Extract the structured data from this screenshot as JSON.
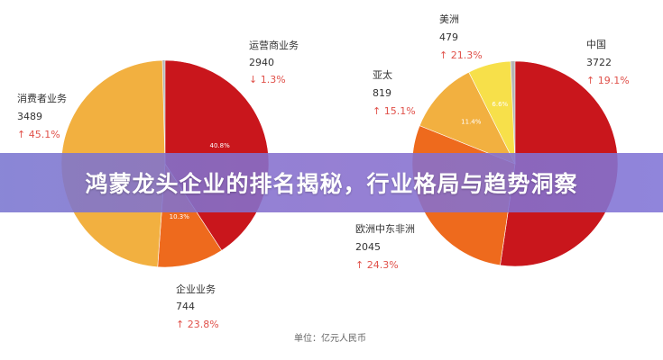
{
  "banner": {
    "title": "鸿蒙龙头企业的排名揭秘，行业格局与趋势洞察"
  },
  "unit_label": "单位：亿元人民币",
  "chart_data": [
    {
      "type": "pie",
      "categories": [
        "运营商业务",
        "企业业务",
        "消费者业务"
      ],
      "values": [
        2940,
        744,
        3489
      ],
      "percent_labels": [
        "40.8%",
        "10.3%",
        ""
      ],
      "changes": [
        "↓ 1.3%",
        "↑ 23.8%",
        "↑ 45.1%"
      ],
      "colors": [
        "#c9161c",
        "#ee6a1d",
        "#f2b040"
      ],
      "gap_color": "#b5b5b5"
    },
    {
      "type": "pie",
      "categories": [
        "中国",
        "欧洲中东非洲",
        "亚太",
        "美洲"
      ],
      "values": [
        3722,
        2045,
        819,
        479
      ],
      "percent_labels": [
        "",
        "",
        "11.4%",
        "6.6%"
      ],
      "changes": [
        "↑ 19.1%",
        "↑ 24.3%",
        "↑ 15.1%",
        "↑ 21.3%"
      ],
      "colors": [
        "#c9161c",
        "#ee6a1d",
        "#f2b040",
        "#f7e04a"
      ],
      "gap_color": "#b5b5b5"
    }
  ],
  "colors": {
    "up": "#e0514a",
    "down": "#e0514a",
    "text": "#333333"
  }
}
